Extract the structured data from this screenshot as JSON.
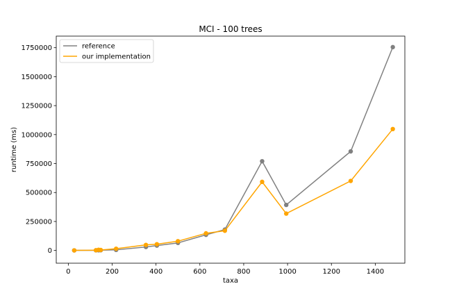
{
  "chart_data": {
    "type": "line",
    "title": "MCI - 100 trees",
    "xlabel": "taxa",
    "ylabel": "runtime (ms)",
    "xlim": [
      -55,
      1535
    ],
    "ylim": [
      -110000,
      1850000
    ],
    "x_ticks": [
      0,
      200,
      400,
      600,
      800,
      1000,
      1200,
      1400
    ],
    "y_ticks": [
      0,
      250000,
      500000,
      750000,
      1000000,
      1250000,
      1500000,
      1750000
    ],
    "x_tick_labels": [
      "0",
      "200",
      "400",
      "600",
      "800",
      "1000",
      "1200",
      "1400"
    ],
    "y_tick_labels": [
      "0",
      "250000",
      "500000",
      "750000",
      "1000000",
      "1250000",
      "1500000",
      "1750000"
    ],
    "grid": false,
    "legend_position": "top-left",
    "series": [
      {
        "name": "reference",
        "color": "#808080",
        "marker": "circle",
        "x": [
          27,
          126,
          138,
          148,
          218,
          354,
          404,
          500,
          628,
          714,
          884,
          994,
          1288,
          1480
        ],
        "y": [
          500,
          1000,
          1500,
          2000,
          5000,
          30000,
          42000,
          65000,
          135000,
          180000,
          770000,
          393000,
          855000,
          1755000
        ]
      },
      {
        "name": "our implementation",
        "color": "#FFA500",
        "marker": "circle",
        "x": [
          27,
          126,
          138,
          148,
          218,
          354,
          404,
          500,
          628,
          714,
          884,
          994,
          1288,
          1480
        ],
        "y": [
          800,
          2000,
          6000,
          4000,
          15000,
          48000,
          54000,
          80000,
          148000,
          170000,
          592000,
          318000,
          600000,
          1048000
        ]
      }
    ]
  }
}
